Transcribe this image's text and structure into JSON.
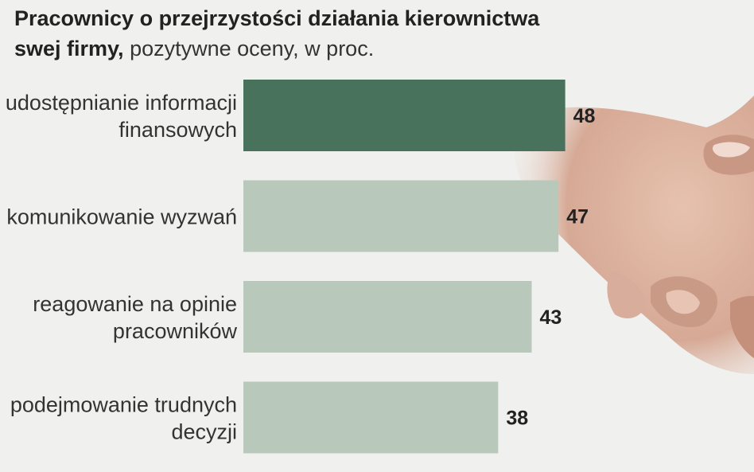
{
  "title": {
    "line1": "Pracownicy o przejrzystości działania kierownictwa",
    "line2_bold": "swej firmy,",
    "line2_normal": " pozytywne oceny, w proc."
  },
  "colors": {
    "highlight_bar": "#48725b",
    "bar": "#b8c8bb",
    "background": "#f0f0ee"
  },
  "chart_data": {
    "type": "bar",
    "orientation": "horizontal",
    "categories": [
      [
        "udostępnianie informacji",
        "finansowych"
      ],
      [
        "komunikowanie wyzwań"
      ],
      [
        "reagowanie na opinie",
        "pracowników"
      ],
      [
        "podejmowanie trudnych",
        "decyzji"
      ]
    ],
    "values": [
      48,
      47,
      43,
      38
    ],
    "highlight_index": 0,
    "grid": false
  }
}
